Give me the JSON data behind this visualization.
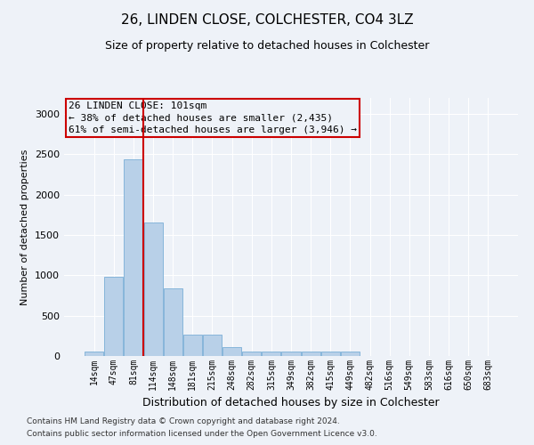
{
  "title1": "26, LINDEN CLOSE, COLCHESTER, CO4 3LZ",
  "title2": "Size of property relative to detached houses in Colchester",
  "xlabel": "Distribution of detached houses by size in Colchester",
  "ylabel": "Number of detached properties",
  "footnote1": "Contains HM Land Registry data © Crown copyright and database right 2024.",
  "footnote2": "Contains public sector information licensed under the Open Government Licence v3.0.",
  "annotation_line1": "26 LINDEN CLOSE: 101sqm",
  "annotation_line2": "← 38% of detached houses are smaller (2,435)",
  "annotation_line3": "61% of semi-detached houses are larger (3,946) →",
  "bar_color": "#b8d0e8",
  "bar_edge_color": "#7aaed6",
  "vline_color": "#cc0000",
  "annotation_box_color": "#cc0000",
  "categories": [
    "14sqm",
    "47sqm",
    "81sqm",
    "114sqm",
    "148sqm",
    "181sqm",
    "215sqm",
    "248sqm",
    "282sqm",
    "315sqm",
    "349sqm",
    "382sqm",
    "415sqm",
    "449sqm",
    "482sqm",
    "516sqm",
    "549sqm",
    "583sqm",
    "616sqm",
    "650sqm",
    "683sqm"
  ],
  "values": [
    50,
    985,
    2440,
    1660,
    840,
    270,
    270,
    115,
    50,
    50,
    50,
    50,
    50,
    50,
    0,
    0,
    0,
    0,
    0,
    0,
    0
  ],
  "vline_position": 2.5,
  "ylim": [
    0,
    3200
  ],
  "yticks": [
    0,
    500,
    1000,
    1500,
    2000,
    2500,
    3000
  ],
  "background_color": "#eef2f8",
  "grid_color": "#ffffff",
  "title1_fontsize": 11,
  "title2_fontsize": 9,
  "ylabel_fontsize": 8,
  "xlabel_fontsize": 9,
  "tick_fontsize": 8,
  "xtick_fontsize": 7,
  "footnote_fontsize": 6.5,
  "annot_fontsize": 8
}
